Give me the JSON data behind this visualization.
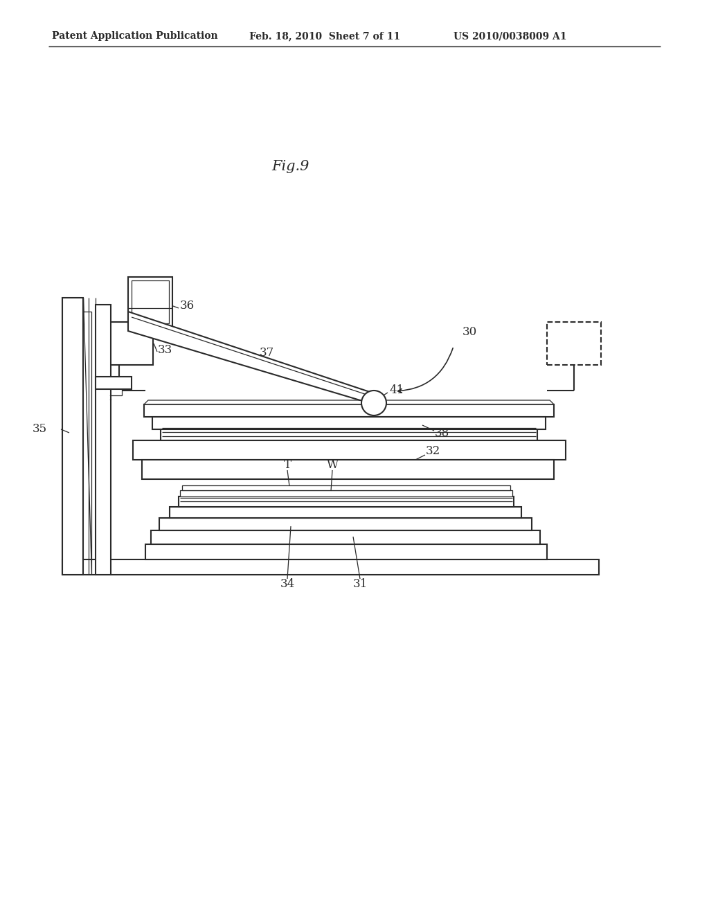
{
  "bg_color": "#ffffff",
  "line_color": "#2a2a2a",
  "header_text1": "Patent Application Publication",
  "header_text2": "Feb. 18, 2010  Sheet 7 of 11",
  "header_text3": "US 2010/0038009 A1",
  "fig_label": "Fig.9"
}
